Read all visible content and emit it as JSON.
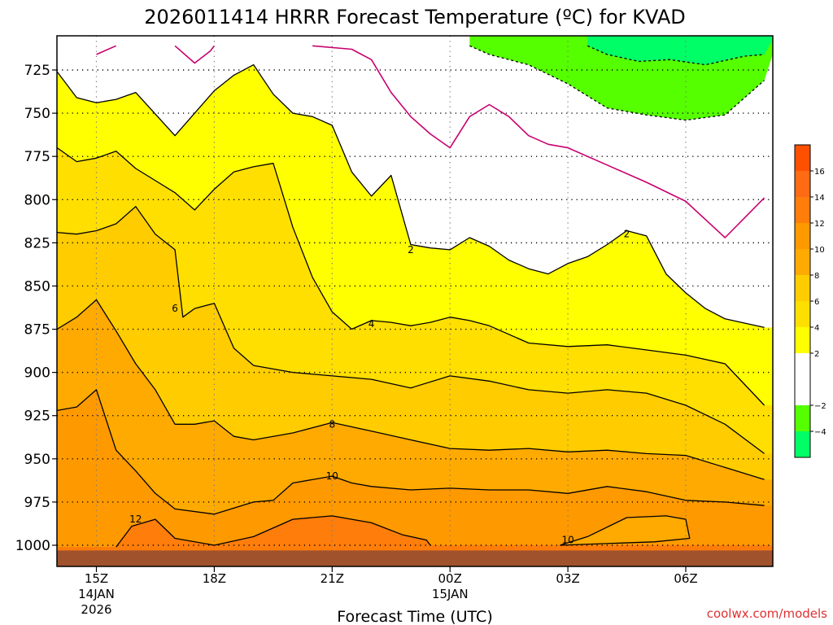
{
  "chart_data": {
    "type": "heatmap",
    "title": "2026011414 HRRR Forecast Temperature (ºC) for KVAD",
    "xlabel": "Forecast Time (UTC)",
    "ylabel": "",
    "x_ticks": [
      {
        "hour": 1,
        "label": "15Z",
        "date": "14JAN",
        "year": "2026"
      },
      {
        "hour": 4,
        "label": "18Z"
      },
      {
        "hour": 7,
        "label": "21Z"
      },
      {
        "hour": 10,
        "label": "00Z",
        "date": "15JAN"
      },
      {
        "hour": 13,
        "label": "03Z"
      },
      {
        "hour": 16,
        "label": "06Z"
      }
    ],
    "xlim_hours": [
      0,
      18
    ],
    "y_ticks": [
      725,
      750,
      775,
      800,
      825,
      850,
      875,
      900,
      925,
      950,
      975,
      1000
    ],
    "ylim_hPa": [
      1010,
      711
    ],
    "ground_hPa": 1003,
    "contours": [
      {
        "value": -2,
        "style": "dashed",
        "points": [
          [
            10.5,
            711
          ],
          [
            11.0,
            716
          ],
          [
            12.0,
            722
          ],
          [
            13.0,
            733
          ],
          [
            14.0,
            747
          ],
          [
            15.0,
            751
          ],
          [
            16.0,
            754
          ],
          [
            17.0,
            751
          ],
          [
            18.0,
            731
          ]
        ]
      },
      {
        "value": -2,
        "style": "dashed",
        "points": [
          [
            13.5,
            711
          ],
          [
            14.0,
            716
          ],
          [
            14.8,
            720
          ],
          [
            15.6,
            719
          ],
          [
            16.5,
            722
          ],
          [
            17.5,
            717
          ],
          [
            18.0,
            716
          ]
        ]
      },
      {
        "value": 0,
        "style": "solid",
        "points": [
          [
            1.0,
            716
          ],
          [
            1.5,
            711
          ]
        ]
      },
      {
        "value": 0,
        "style": "solid",
        "points": [
          [
            3.0,
            711
          ],
          [
            3.5,
            721
          ],
          [
            3.9,
            714
          ],
          [
            4.0,
            711
          ]
        ]
      },
      {
        "value": 0,
        "style": "solid",
        "points": [
          [
            6.5,
            711
          ],
          [
            7.5,
            713
          ],
          [
            8.0,
            719
          ],
          [
            8.5,
            738
          ],
          [
            9.0,
            752
          ],
          [
            9.5,
            762
          ],
          [
            10.0,
            770
          ],
          [
            10.5,
            752
          ],
          [
            11.0,
            745
          ],
          [
            11.5,
            752
          ],
          [
            12.0,
            763
          ],
          [
            12.5,
            768
          ],
          [
            13.0,
            770
          ],
          [
            14.0,
            780
          ],
          [
            15.0,
            790
          ],
          [
            16.0,
            801
          ],
          [
            17.0,
            822
          ],
          [
            18.0,
            799
          ]
        ]
      },
      {
        "value": 2,
        "style": "solid",
        "points": [
          [
            0,
            726
          ],
          [
            0.5,
            741
          ],
          [
            1.0,
            744
          ],
          [
            1.5,
            742
          ],
          [
            2.0,
            738
          ],
          [
            3.0,
            763
          ],
          [
            4.0,
            737
          ],
          [
            4.5,
            728
          ],
          [
            5.0,
            722
          ],
          [
            5.5,
            739
          ],
          [
            6.0,
            750
          ],
          [
            6.5,
            752
          ],
          [
            7.0,
            757
          ],
          [
            7.5,
            784
          ],
          [
            8.0,
            798
          ],
          [
            8.5,
            786
          ],
          [
            9.0,
            826
          ],
          [
            9.5,
            828
          ],
          [
            10.0,
            829
          ],
          [
            10.5,
            822
          ],
          [
            11.0,
            827
          ],
          [
            11.5,
            835
          ],
          [
            12.0,
            840
          ],
          [
            12.5,
            843
          ],
          [
            13.0,
            837
          ],
          [
            13.5,
            833
          ],
          [
            14.0,
            826
          ],
          [
            14.5,
            818
          ],
          [
            15.0,
            821
          ],
          [
            15.5,
            843
          ],
          [
            16.0,
            854
          ],
          [
            16.5,
            863
          ],
          [
            17.0,
            869
          ],
          [
            18.0,
            874
          ]
        ]
      },
      {
        "value": 4,
        "style": "solid",
        "points": [
          [
            0,
            770
          ],
          [
            0.5,
            778
          ],
          [
            1.0,
            776
          ],
          [
            1.5,
            772
          ],
          [
            2.0,
            782
          ],
          [
            3.0,
            796
          ],
          [
            3.5,
            806
          ],
          [
            4.0,
            794
          ],
          [
            4.5,
            784
          ],
          [
            5.0,
            781
          ],
          [
            5.5,
            779
          ],
          [
            6.0,
            816
          ],
          [
            6.5,
            845
          ],
          [
            7.0,
            865
          ],
          [
            7.5,
            875
          ],
          [
            8.0,
            870
          ],
          [
            8.5,
            871
          ],
          [
            9.0,
            873
          ],
          [
            9.5,
            871
          ],
          [
            10.0,
            868
          ],
          [
            10.5,
            870
          ],
          [
            11.0,
            873
          ],
          [
            12.0,
            883
          ],
          [
            13.0,
            885
          ],
          [
            14.0,
            884
          ],
          [
            15.0,
            887
          ],
          [
            16.0,
            890
          ],
          [
            17.0,
            895
          ],
          [
            18.0,
            919
          ]
        ]
      },
      {
        "value": 6,
        "style": "solid",
        "points": [
          [
            0,
            819
          ],
          [
            0.5,
            820
          ],
          [
            1.0,
            818
          ],
          [
            1.5,
            814
          ],
          [
            2.0,
            804
          ],
          [
            2.5,
            820
          ],
          [
            3.0,
            829
          ],
          [
            3.2,
            868
          ],
          [
            3.5,
            863
          ],
          [
            4.0,
            860
          ],
          [
            4.5,
            886
          ],
          [
            5.0,
            896
          ],
          [
            6.0,
            900
          ],
          [
            7.0,
            902
          ],
          [
            8.0,
            904
          ],
          [
            9.0,
            909
          ],
          [
            10.0,
            902
          ],
          [
            11.0,
            905
          ],
          [
            12.0,
            910
          ],
          [
            13.0,
            912
          ],
          [
            14.0,
            910
          ],
          [
            15.0,
            912
          ],
          [
            16.0,
            919
          ],
          [
            17.0,
            930
          ],
          [
            18.0,
            947
          ]
        ]
      },
      {
        "value": 8,
        "style": "solid",
        "points": [
          [
            0,
            875
          ],
          [
            0.5,
            868
          ],
          [
            1.0,
            858
          ],
          [
            1.5,
            876
          ],
          [
            2.0,
            895
          ],
          [
            2.5,
            910
          ],
          [
            3.0,
            930
          ],
          [
            3.5,
            930
          ],
          [
            4.0,
            928
          ],
          [
            4.5,
            937
          ],
          [
            5.0,
            939
          ],
          [
            6.0,
            935
          ],
          [
            7.0,
            929
          ],
          [
            8.0,
            934
          ],
          [
            9.0,
            939
          ],
          [
            10.0,
            944
          ],
          [
            11.0,
            945
          ],
          [
            12.0,
            944
          ],
          [
            13.0,
            946
          ],
          [
            14.0,
            945
          ],
          [
            15.0,
            947
          ],
          [
            16.0,
            948
          ],
          [
            17.0,
            955
          ],
          [
            18.0,
            962
          ]
        ]
      },
      {
        "value": 10,
        "style": "solid",
        "points": [
          [
            0,
            922
          ],
          [
            0.5,
            920
          ],
          [
            1.0,
            910
          ],
          [
            1.5,
            945
          ],
          [
            2.0,
            957
          ],
          [
            2.5,
            970
          ],
          [
            3.0,
            979
          ],
          [
            4.0,
            982
          ],
          [
            5.0,
            975
          ],
          [
            5.5,
            974
          ],
          [
            6.0,
            964
          ],
          [
            7.0,
            960
          ],
          [
            7.5,
            964
          ],
          [
            8.0,
            966
          ],
          [
            9.0,
            968
          ],
          [
            10.0,
            967
          ],
          [
            11.0,
            968
          ],
          [
            12.0,
            968
          ],
          [
            13.0,
            970
          ],
          [
            14.0,
            966
          ],
          [
            15.0,
            969
          ],
          [
            16.0,
            974
          ],
          [
            17.0,
            975
          ],
          [
            18.0,
            977
          ]
        ]
      },
      {
        "value": 10,
        "style": "solid",
        "points": [
          [
            12.8,
            1000
          ],
          [
            13.5,
            995
          ],
          [
            14.5,
            984
          ],
          [
            15.5,
            983
          ],
          [
            16.0,
            985
          ],
          [
            16.1,
            996
          ],
          [
            15.2,
            998
          ],
          [
            14.0,
            999
          ],
          [
            12.8,
            1000
          ]
        ]
      },
      {
        "value": 12,
        "style": "solid",
        "points": [
          [
            1.5,
            1001
          ],
          [
            1.9,
            989
          ],
          [
            2.5,
            985
          ],
          [
            3.0,
            996
          ],
          [
            4.0,
            1000
          ],
          [
            5.0,
            995
          ],
          [
            6.0,
            985
          ],
          [
            7.0,
            983
          ],
          [
            8.0,
            987
          ],
          [
            8.8,
            994
          ],
          [
            9.4,
            997
          ],
          [
            9.5,
            1000
          ]
        ]
      }
    ],
    "contour_labels": [
      {
        "value": 2,
        "hour": 9.0,
        "hPa": 829,
        "text": "2"
      },
      {
        "value": 2,
        "hour": 14.5,
        "hPa": 820,
        "text": "2"
      },
      {
        "value": 4,
        "hour": 8.0,
        "hPa": 872,
        "text": "4"
      },
      {
        "value": 6,
        "hour": 3.0,
        "hPa": 863,
        "text": "6"
      },
      {
        "value": 8,
        "hour": 7.0,
        "hPa": 930,
        "text": "8"
      },
      {
        "value": 10,
        "hour": 7.0,
        "hPa": 960,
        "text": "10"
      },
      {
        "value": 10,
        "hour": 13.0,
        "hPa": 997,
        "text": "10"
      },
      {
        "value": 12,
        "hour": 2.0,
        "hPa": 985,
        "text": "12"
      }
    ],
    "colorbar": {
      "ticks": [
        16,
        14,
        12,
        10,
        8,
        6,
        4,
        2,
        -2,
        -4
      ],
      "ticks_display": [
        "16",
        "14",
        "12",
        "10",
        "8",
        "6",
        "4",
        "2",
        "−2",
        "−4"
      ],
      "bins": [
        {
          "min": -6,
          "max": -4,
          "color": "#00ff66"
        },
        {
          "min": -4,
          "max": -2,
          "color": "#55ff00"
        },
        {
          "min": -2,
          "max": 2,
          "color": "#ffffff"
        },
        {
          "min": 2,
          "max": 4,
          "color": "#ffff00"
        },
        {
          "min": 4,
          "max": 6,
          "color": "#ffdf00"
        },
        {
          "min": 6,
          "max": 8,
          "color": "#ffcc00"
        },
        {
          "min": 8,
          "max": 10,
          "color": "#ffaa00"
        },
        {
          "min": 10,
          "max": 12,
          "color": "#ff9900"
        },
        {
          "min": 12,
          "max": 14,
          "color": "#ff7d0a"
        },
        {
          "min": 14,
          "max": 16,
          "color": "#ff6a14"
        },
        {
          "min": 16,
          "max": 18,
          "color": "#ff5000"
        }
      ]
    },
    "credit": "coolwx.com/models"
  },
  "colors": {
    "zero_line": "#c8006e",
    "ground": "#a0522d",
    "fill_0_2": "#ffff00",
    "credit": "#e03030"
  }
}
